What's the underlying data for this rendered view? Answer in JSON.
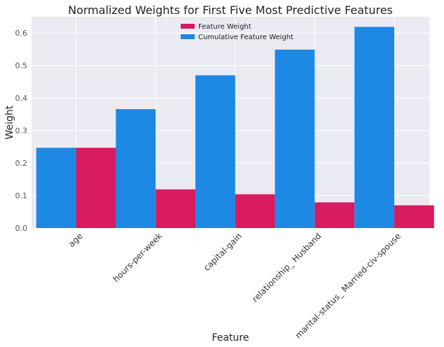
{
  "chart_data": {
    "type": "bar",
    "title": "Normalized Weights for First Five Most Predictive Features",
    "xlabel": "Feature",
    "ylabel": "Weight",
    "categories": [
      "age",
      "hours-per-week",
      "capital-gain",
      "relationship_ Husband",
      "marital-status_ Married-civ-spouse"
    ],
    "series": [
      {
        "name": "Feature Weight",
        "color": "#d81b60",
        "values": [
          0.247,
          0.119,
          0.104,
          0.079,
          0.07
        ]
      },
      {
        "name": "Cumulative Feature Weight",
        "color": "#1e88e5",
        "values": [
          0.247,
          0.366,
          0.47,
          0.549,
          0.619
        ]
      }
    ],
    "ylim": [
      0,
      0.65
    ],
    "yticks": [
      "0.0",
      "0.1",
      "0.2",
      "0.3",
      "0.4",
      "0.5",
      "0.6"
    ],
    "ytick_values": [
      0,
      0.1,
      0.2,
      0.3,
      0.4,
      0.5,
      0.6
    ],
    "grid": true,
    "legend_position": "top-center",
    "background_color": "#eaeaf2",
    "grid_color": "#ffffff"
  }
}
